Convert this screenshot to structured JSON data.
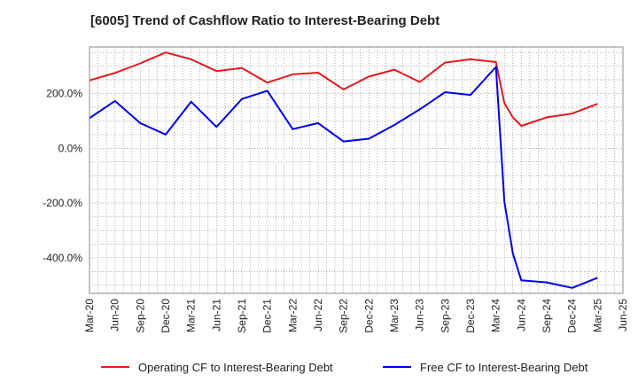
{
  "chart_data": {
    "type": "line",
    "title": "[6005]  Trend of Cashflow Ratio to Interest-Bearing Debt",
    "x": [
      "Mar-20",
      "Jun-20",
      "Sep-20",
      "Dec-20",
      "Mar-21",
      "Jun-21",
      "Sep-21",
      "Dec-21",
      "Mar-22",
      "Jun-22",
      "Sep-22",
      "Dec-22",
      "Mar-23",
      "Jun-23",
      "Sep-23",
      "Dec-23",
      "Mar-24",
      "Apr-24",
      "May-24",
      "Jun-24",
      "Sep-24",
      "Dec-24",
      "Mar-25"
    ],
    "x_ticks": [
      "Mar-20",
      "Jun-20",
      "Sep-20",
      "Dec-20",
      "Mar-21",
      "Jun-21",
      "Sep-21",
      "Dec-21",
      "Mar-22",
      "Jun-22",
      "Sep-22",
      "Dec-22",
      "Mar-23",
      "Jun-23",
      "Sep-23",
      "Dec-23",
      "Mar-24",
      "Jun-24",
      "Sep-24",
      "Dec-24",
      "Mar-25",
      "Jun-25"
    ],
    "y_ticks": [
      -400,
      -200,
      0,
      200
    ],
    "y_tick_labels": [
      "-400.0%",
      "-200.0%",
      "0.0%",
      "200.0%"
    ],
    "ylim": [
      -530,
      370
    ],
    "grid": true,
    "legend_position": "bottom",
    "series": [
      {
        "name": "Operating CF to Interest-Bearing Debt",
        "color": "#e31a1c",
        "values": [
          248,
          275,
          310,
          350,
          325,
          282,
          293,
          240,
          270,
          276,
          215,
          262,
          287,
          242,
          313,
          325,
          315,
          165,
          113,
          82,
          113,
          127,
          162
        ]
      },
      {
        "name": "Free CF to Interest-Bearing Debt",
        "color": "#0000e6",
        "values": [
          110,
          173,
          92,
          50,
          170,
          78,
          180,
          210,
          70,
          92,
          25,
          35,
          85,
          142,
          205,
          195,
          297,
          -195,
          -385,
          -482,
          -490,
          -510,
          -473
        ]
      }
    ]
  }
}
